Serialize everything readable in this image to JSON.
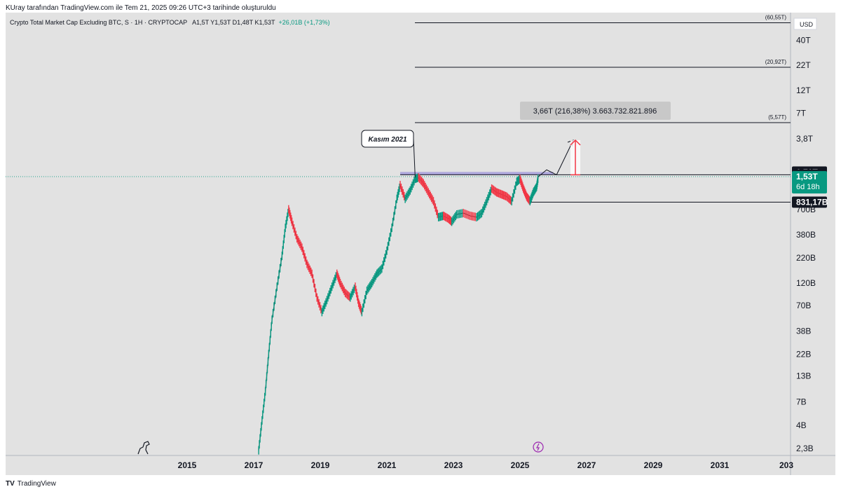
{
  "header": {
    "text": "KUray tarafından TradingView.com ile Tem 21, 2025 09:26 UTC+3 tarihinde oluşturuldu"
  },
  "legend": {
    "symbol": "Crypto Total Market Cap Excluding BTC, S · 1H · CRYPTOCAP",
    "ohlc": "A1,5T  Y1,53T  D1,48T  K1,53T",
    "change": "+26,01B (+1,73%)"
  },
  "footer": {
    "brand": "TradingView",
    "logo": "TV"
  },
  "chart_data": {
    "type": "line",
    "title": "Crypto Total Market Cap Excluding BTC",
    "ylabel": "USD",
    "log_scale": true,
    "currency_label": "USD",
    "x_ticks": [
      "2015",
      "2017",
      "2019",
      "2021",
      "2023",
      "2025",
      "2027",
      "2029",
      "2031",
      "203"
    ],
    "y_ticks": [
      "40T",
      "22T",
      "12T",
      "7T",
      "3,8T",
      "700B",
      "380B",
      "220B",
      "120B",
      "70B",
      "38B",
      "22B",
      "13B",
      "7B",
      "4B",
      "2,3B"
    ],
    "series": [
      {
        "values": [
          [
            2017.15,
            2.2
          ],
          [
            2017.25,
            4.5
          ],
          [
            2017.35,
            9
          ],
          [
            2017.45,
            22
          ],
          [
            2017.55,
            50
          ],
          [
            2017.7,
            110
          ],
          [
            2017.85,
            230
          ],
          [
            2017.95,
            450
          ],
          [
            2018.05,
            700
          ],
          [
            2018.15,
            520
          ],
          [
            2018.3,
            350
          ],
          [
            2018.45,
            280
          ],
          [
            2018.6,
            190
          ],
          [
            2018.75,
            150
          ],
          [
            2018.9,
            85
          ],
          [
            2019.05,
            60
          ],
          [
            2019.2,
            80
          ],
          [
            2019.35,
            110
          ],
          [
            2019.5,
            150
          ],
          [
            2019.6,
            120
          ],
          [
            2019.75,
            95
          ],
          [
            2019.9,
            85
          ],
          [
            2020.05,
            110
          ],
          [
            2020.15,
            75
          ],
          [
            2020.25,
            60
          ],
          [
            2020.4,
            100
          ],
          [
            2020.55,
            120
          ],
          [
            2020.7,
            150
          ],
          [
            2020.85,
            170
          ],
          [
            2021.0,
            260
          ],
          [
            2021.15,
            450
          ],
          [
            2021.3,
            900
          ],
          [
            2021.4,
            1250
          ],
          [
            2021.55,
            900
          ],
          [
            2021.7,
            1100
          ],
          [
            2021.85,
            1450
          ],
          [
            2021.95,
            1500
          ],
          [
            2022.1,
            1300
          ],
          [
            2022.25,
            1050
          ],
          [
            2022.4,
            850
          ],
          [
            2022.55,
            580
          ],
          [
            2022.7,
            600
          ],
          [
            2022.85,
            560
          ],
          [
            2022.95,
            520
          ],
          [
            2023.1,
            620
          ],
          [
            2023.3,
            640
          ],
          [
            2023.5,
            600
          ],
          [
            2023.7,
            580
          ],
          [
            2023.85,
            640
          ],
          [
            2024.0,
            850
          ],
          [
            2024.15,
            1150
          ],
          [
            2024.3,
            1050
          ],
          [
            2024.45,
            1000
          ],
          [
            2024.6,
            950
          ],
          [
            2024.75,
            850
          ],
          [
            2024.9,
            1350
          ],
          [
            2025.0,
            1450
          ],
          [
            2025.1,
            1150
          ],
          [
            2025.2,
            950
          ],
          [
            2025.3,
            850
          ],
          [
            2025.4,
            1050
          ],
          [
            2025.5,
            1200
          ],
          [
            2025.55,
            1530
          ]
        ]
      }
    ],
    "projection": [
      [
        2025.55,
        1530
      ],
      [
        2025.8,
        1800
      ],
      [
        2026.1,
        1600
      ],
      [
        2026.6,
        3660
      ]
    ],
    "horizontal_levels": [
      {
        "label": "(60,55T)",
        "value": 60550
      },
      {
        "label": "(20,92T)",
        "value": 20920
      },
      {
        "label": "(5,57T)",
        "value": 5570
      },
      {
        "value": 1600
      },
      {
        "value": 1710
      },
      {
        "value": 831.17
      }
    ],
    "annotation": {
      "text": "Kasım 2021",
      "x": 2021.85,
      "y": 1500
    },
    "measure": {
      "text": "3,66T (216,38%) 3.663.732.821.896",
      "x": 2026.2,
      "from": 1600,
      "to": 3660
    },
    "price_labels": [
      {
        "text": "1,71T",
        "value": 1710,
        "bg": "#131722",
        "fg": "#ffffff"
      },
      {
        "text": "1,6T",
        "value": 1600,
        "bg": "#131722",
        "fg": "#ffffff"
      },
      {
        "text": "1,53T",
        "text2": "6d 18h",
        "value": 1530,
        "bg": "#089981",
        "fg": "#ffffff"
      },
      {
        "text": "831,17B",
        "value": 831.17,
        "bg": "#131722",
        "fg": "#ffffff"
      }
    ],
    "colors": {
      "up": "#089981",
      "down": "#f23645",
      "zone": "#9c93d9",
      "measure": "#f23645"
    }
  }
}
